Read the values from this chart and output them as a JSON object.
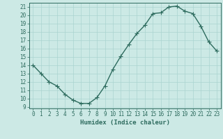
{
  "x": [
    0,
    1,
    2,
    3,
    4,
    5,
    6,
    7,
    8,
    9,
    10,
    11,
    12,
    13,
    14,
    15,
    16,
    17,
    18,
    19,
    20,
    21,
    22,
    23
  ],
  "y": [
    14,
    13,
    12,
    11.5,
    10.5,
    9.8,
    9.4,
    9.4,
    10.1,
    11.5,
    13.5,
    15.1,
    16.5,
    17.8,
    18.8,
    20.2,
    20.3,
    21.0,
    21.1,
    20.5,
    20.2,
    18.7,
    16.8,
    15.7
  ],
  "line_color": "#2d6b5e",
  "marker": "+",
  "markersize": 4,
  "linewidth": 1.0,
  "bg_color": "#cce9e5",
  "grid_color": "#aad4d0",
  "xlabel": "Humidex (Indice chaleur)",
  "xlim": [
    -0.5,
    23.5
  ],
  "ylim": [
    8.8,
    21.5
  ],
  "yticks": [
    9,
    10,
    11,
    12,
    13,
    14,
    15,
    16,
    17,
    18,
    19,
    20,
    21
  ],
  "xticks": [
    0,
    1,
    2,
    3,
    4,
    5,
    6,
    7,
    8,
    9,
    10,
    11,
    12,
    13,
    14,
    15,
    16,
    17,
    18,
    19,
    20,
    21,
    22,
    23
  ],
  "tick_color": "#2d6b5e",
  "axis_color": "#2d6b5e",
  "label_fontsize": 6.5,
  "tick_fontsize": 5.5
}
